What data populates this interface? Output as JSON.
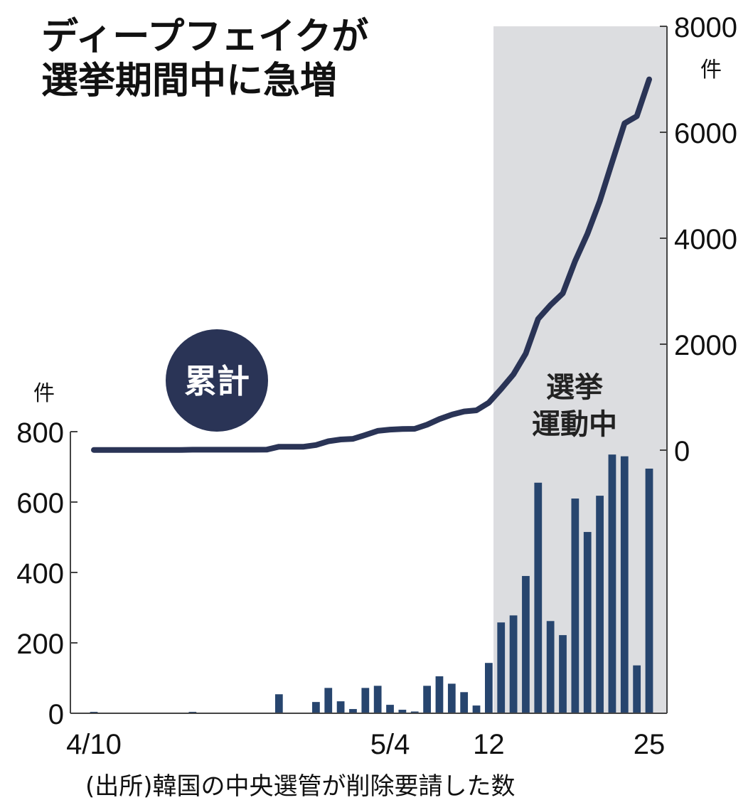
{
  "title": {
    "line1": "ディープフェイクが",
    "line2": "選挙期間中に急増"
  },
  "source": "(出所)韓国の中央選管が削除要請した数",
  "colors": {
    "line": "#2a3456",
    "bar": "#27456e",
    "shade": "#dcdde0",
    "badge": "#2a3456",
    "axis": "#444444"
  },
  "chart_data": {
    "type": "bar+line",
    "x_tick_labels": [
      "4/10",
      "5/4",
      "12",
      "25"
    ],
    "x_tick_index": [
      0,
      24,
      32,
      45
    ],
    "highlight": {
      "label_line1": "選挙",
      "label_line2": "運動中",
      "start_index": 33,
      "end_index": 45
    },
    "left_axis": {
      "unit": "件",
      "ticks": [
        0,
        200,
        400,
        600,
        800
      ],
      "ylim": [
        0,
        800
      ]
    },
    "right_axis": {
      "unit": "件",
      "ticks": [
        0,
        2000,
        4000,
        6000,
        8000
      ],
      "ylim": [
        0,
        8000
      ]
    },
    "daily_bars": [
      4,
      0,
      0,
      0,
      0,
      0,
      0,
      0,
      4,
      0,
      0,
      0,
      0,
      0,
      2,
      54,
      0,
      0,
      32,
      72,
      34,
      12,
      72,
      78,
      24,
      10,
      5,
      78,
      105,
      84,
      60,
      22,
      143,
      258,
      278,
      390,
      655,
      262,
      222,
      610,
      515,
      618,
      735,
      730,
      136,
      695
    ],
    "cumulative_series": {
      "name": "累計",
      "values": [
        4,
        4,
        4,
        4,
        4,
        4,
        4,
        4,
        8,
        8,
        8,
        8,
        8,
        8,
        10,
        64,
        64,
        64,
        96,
        168,
        202,
        214,
        286,
        364,
        388,
        398,
        403,
        481,
        586,
        670,
        730,
        752,
        895,
        1153,
        1431,
        1821,
        2476,
        2738,
        2960,
        3570,
        4085,
        4703,
        5438,
        6168,
        6304,
        6999
      ]
    }
  }
}
